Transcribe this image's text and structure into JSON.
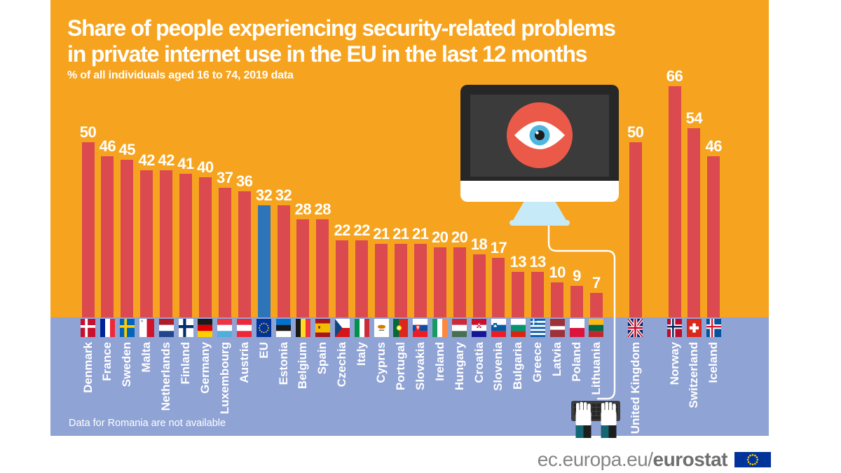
{
  "header": {
    "title_line1": "Share of people experiencing security-related problems",
    "title_line2": "in private internet use in the EU in the last 12 months",
    "subtitle": "% of all individuals aged 16 to 74, 2019 data"
  },
  "footer": {
    "text_regular": "ec.europa.eu/",
    "text_bold": "eurostat",
    "logo_icon": "eu-flag-icon"
  },
  "illustrations": {
    "monitor": "monitor-with-surveillance-eye",
    "eye": "eye-icon",
    "cable": "monitor-cable-line",
    "keyboard": "typing-hands-keyboard"
  },
  "colors": {
    "background_top": "#F6A41F",
    "background_bottom": "#90A3D5",
    "bar": "#DA4A4E",
    "eu_bar": "#2E74B9",
    "text": "#FFFFFF",
    "footer_text": "#858585",
    "eu_flag_blue": "#003399",
    "star_yellow": "#FFCC00",
    "monitor_accent": "#EB5A49",
    "eye_iris": "#4FB6DF",
    "stand_blue": "#C7EAF8"
  },
  "chart_data": {
    "type": "bar",
    "title": "Share of people experiencing security-related problems in private internet use in the EU in the last 12 months",
    "subtitle": "% of all individuals aged 16 to 74, 2019 data",
    "unit": "% of individuals",
    "ylim": [
      0,
      70
    ],
    "grid": false,
    "note": "Data for Romania are not available",
    "bar_colors": {
      "member": "#DA4A4E",
      "eu_aggregate": "#2E74B9"
    },
    "groups": [
      {
        "name": "eu-and-member-states",
        "bars": [
          {
            "label": "Denmark",
            "value": 50,
            "flag": "dk"
          },
          {
            "label": "France",
            "value": 46,
            "flag": "fr"
          },
          {
            "label": "Sweden",
            "value": 45,
            "flag": "se"
          },
          {
            "label": "Malta",
            "value": 42,
            "flag": "mt"
          },
          {
            "label": "Netherlands",
            "value": 42,
            "flag": "nl"
          },
          {
            "label": "Finland",
            "value": 41,
            "flag": "fi"
          },
          {
            "label": "Germany",
            "value": 40,
            "flag": "de"
          },
          {
            "label": "Luxembourg",
            "value": 37,
            "flag": "lu"
          },
          {
            "label": "Austria",
            "value": 36,
            "flag": "at"
          },
          {
            "label": "EU",
            "value": 32,
            "flag": "eu",
            "highlight": true
          },
          {
            "label": "Estonia",
            "value": 32,
            "flag": "ee"
          },
          {
            "label": "Belgium",
            "value": 28,
            "flag": "be"
          },
          {
            "label": "Spain",
            "value": 28,
            "flag": "es"
          },
          {
            "label": "Czechia",
            "value": 22,
            "flag": "cz"
          },
          {
            "label": "Italy",
            "value": 22,
            "flag": "it"
          },
          {
            "label": "Cyprus",
            "value": 21,
            "flag": "cy"
          },
          {
            "label": "Portugal",
            "value": 21,
            "flag": "pt"
          },
          {
            "label": "Slovakia",
            "value": 21,
            "flag": "sk"
          },
          {
            "label": "Ireland",
            "value": 20,
            "flag": "ie"
          },
          {
            "label": "Hungary",
            "value": 20,
            "flag": "hu"
          },
          {
            "label": "Croatia",
            "value": 18,
            "flag": "hr"
          },
          {
            "label": "Slovenia",
            "value": 17,
            "flag": "si"
          },
          {
            "label": "Bulgaria",
            "value": 13,
            "flag": "bg"
          },
          {
            "label": "Greece",
            "value": 13,
            "flag": "gr"
          },
          {
            "label": "Latvia",
            "value": 10,
            "flag": "lv"
          },
          {
            "label": "Poland",
            "value": 9,
            "flag": "pl"
          },
          {
            "label": "Lithuania",
            "value": 7,
            "flag": "lt"
          }
        ]
      },
      {
        "name": "united-kingdom",
        "bars": [
          {
            "label": "United Kingdom",
            "value": 50,
            "flag": "uk"
          }
        ]
      },
      {
        "name": "efta-countries",
        "bars": [
          {
            "label": "Norway",
            "value": 66,
            "flag": "no"
          },
          {
            "label": "Switzerland",
            "value": 54,
            "flag": "ch"
          },
          {
            "label": "Iceland",
            "value": 46,
            "flag": "is"
          }
        ]
      }
    ]
  }
}
